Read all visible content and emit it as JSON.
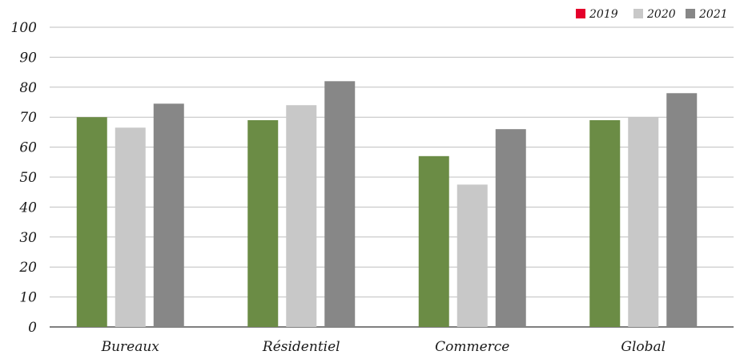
{
  "chart_data": {
    "type": "bar",
    "title": "",
    "xlabel": "",
    "ylabel": "",
    "ylim": [
      0,
      100
    ],
    "yticks": [
      0,
      10,
      20,
      30,
      40,
      50,
      60,
      70,
      80,
      90,
      100
    ],
    "grid": true,
    "legend_position": "top-right",
    "categories": [
      "Bureaux",
      "Résidentiel",
      "Commerce",
      "Global"
    ],
    "series": [
      {
        "name": "2019",
        "values": [
          70,
          69,
          57,
          69
        ],
        "color": "#6b8c45",
        "legend_color": "#e4002b"
      },
      {
        "name": "2020",
        "values": [
          66.5,
          74,
          47.5,
          70
        ],
        "color": "#c8c8c8",
        "legend_color": "#c8c8c8"
      },
      {
        "name": "2021",
        "values": [
          74.5,
          82,
          66,
          78
        ],
        "color": "#878787",
        "legend_color": "#878787"
      }
    ]
  }
}
